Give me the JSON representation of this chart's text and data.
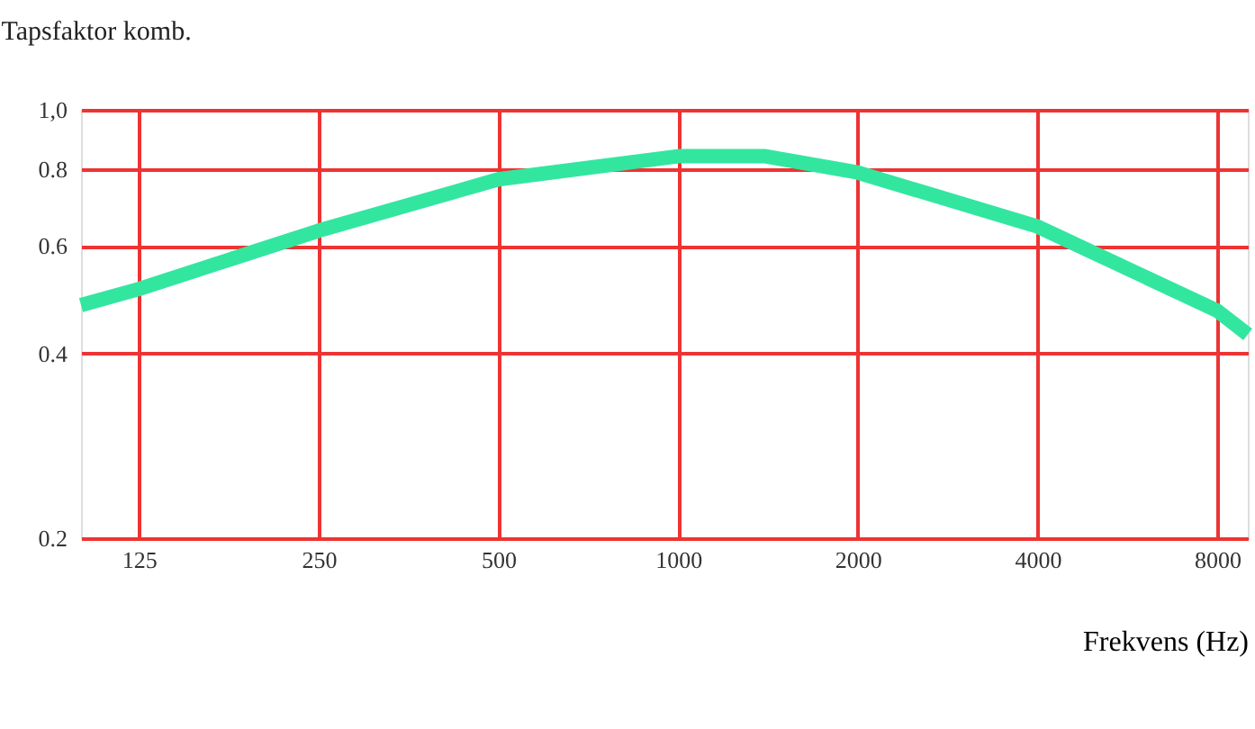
{
  "chart_data": {
    "type": "line",
    "title": "Tapsfaktor komb.",
    "xlabel": "Frekvens (Hz)",
    "x": [
      100,
      125,
      250,
      500,
      1000,
      1400,
      2000,
      4000,
      8000,
      9000
    ],
    "series": [
      {
        "color": "#33e6a0",
        "values": [
          0.48,
          0.51,
          0.635,
          0.77,
          0.84,
          0.84,
          0.79,
          0.645,
          0.47,
          0.43
        ]
      }
    ],
    "log": "xy",
    "xlim": [
      100,
      9000
    ],
    "xticks": [
      125,
      250,
      500,
      1000,
      2000,
      4000,
      8000
    ],
    "ylim": [
      0.2,
      1.0
    ],
    "yticks": [
      0.2,
      0.4,
      0.6,
      0.8,
      {
        "value": 1.0,
        "label": "1,0"
      }
    ],
    "grid": true,
    "marker": "none",
    "line_style": "solid"
  }
}
